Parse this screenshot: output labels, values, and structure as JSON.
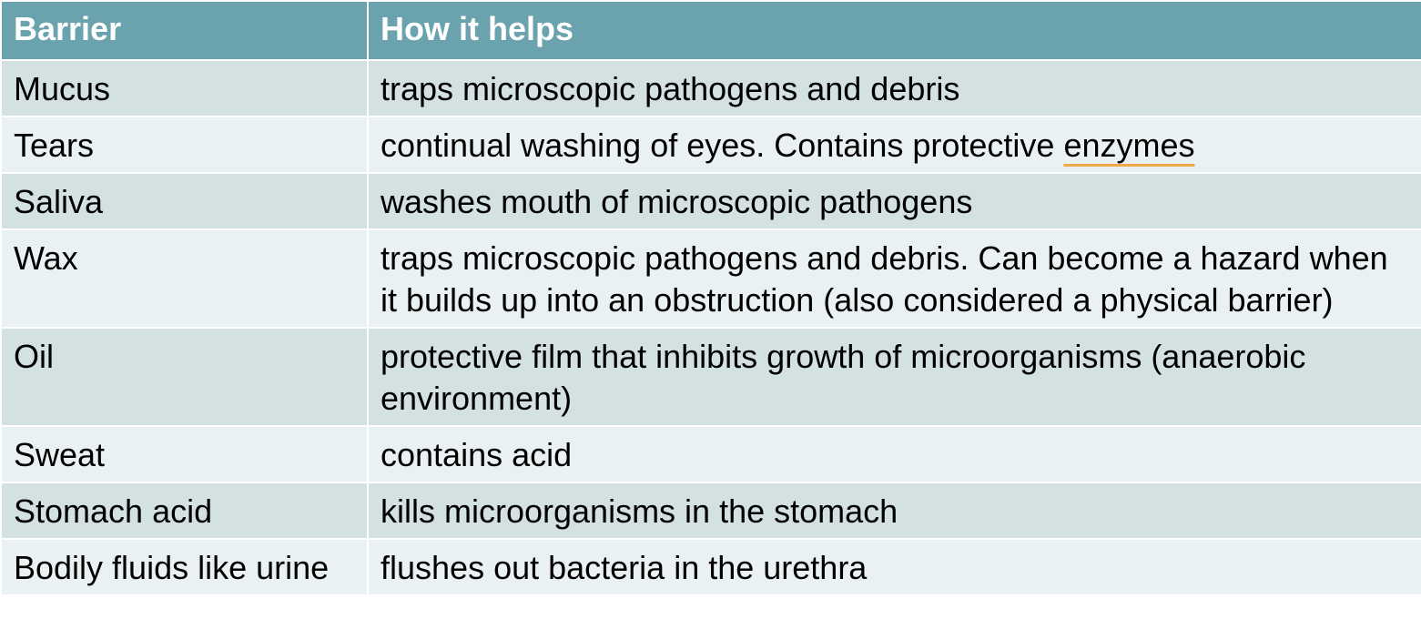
{
  "table": {
    "headers": [
      "Barrier",
      "How it helps"
    ],
    "rows": [
      {
        "barrier": "Mucus",
        "help": "traps microscopic pathogens and debris"
      },
      {
        "barrier": "Tears",
        "help_pre": "continual washing of eyes. Contains protective ",
        "help_flagged": "enzymes"
      },
      {
        "barrier": "Saliva",
        "help": "washes mouth of microscopic pathogens"
      },
      {
        "barrier": "Wax",
        "help": "traps microscopic pathogens and debris. Can become a hazard when it builds up into an obstruction (also considered a physical barrier)"
      },
      {
        "barrier": "Oil",
        "help": "protective film that inhibits growth of microorganisms (anaerobic environment)"
      },
      {
        "barrier": "Sweat",
        "help": "contains acid"
      },
      {
        "barrier": "Stomach acid",
        "help": "kills microorganisms in the stomach"
      },
      {
        "barrier": "Bodily fluids like urine",
        "help": "flushes out bacteria in the urethra"
      }
    ]
  },
  "colors": {
    "header_bg": "#6aa3ae",
    "row_odd_bg": "#d3e1e3",
    "row_even_bg": "#eaf1f2",
    "spellcheck_underline": "#f0a94a"
  }
}
